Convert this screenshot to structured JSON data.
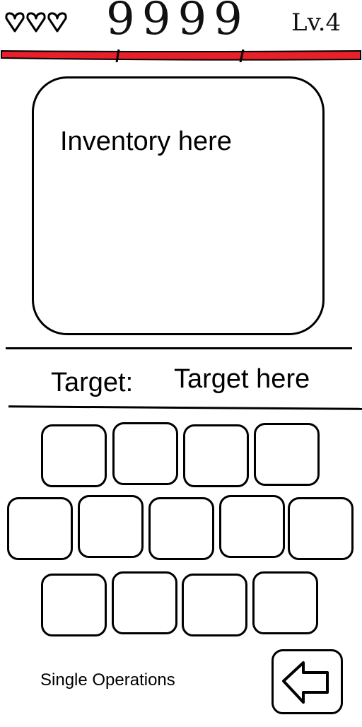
{
  "hud": {
    "lives": 3,
    "score": "9999",
    "level": "Lv.4",
    "health_bar_color": "#e8202a"
  },
  "inventory": {
    "label": "Inventory here"
  },
  "target": {
    "label": "Target:",
    "value": "Target here"
  },
  "keypad": {
    "rows": [
      4,
      5,
      4
    ]
  },
  "footer": {
    "mode_label": "Single Operations",
    "back_icon": "left-arrow-icon"
  }
}
